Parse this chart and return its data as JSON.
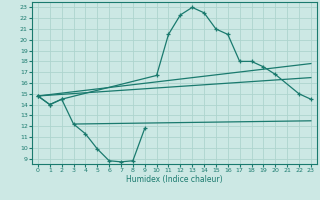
{
  "xlabel": "Humidex (Indice chaleur)",
  "xlim": [
    -0.5,
    23.5
  ],
  "ylim": [
    8.5,
    23.5
  ],
  "xticks": [
    0,
    1,
    2,
    3,
    4,
    5,
    6,
    7,
    8,
    9,
    10,
    11,
    12,
    13,
    14,
    15,
    16,
    17,
    18,
    19,
    20,
    21,
    22,
    23
  ],
  "yticks": [
    9,
    10,
    11,
    12,
    13,
    14,
    15,
    16,
    17,
    18,
    19,
    20,
    21,
    22,
    23
  ],
  "line_color": "#1a7a6e",
  "bg_color": "#cce8e4",
  "grid_color": "#aed4ce",
  "curve_upper_x": [
    0,
    1,
    2,
    10,
    11,
    12,
    13,
    14,
    15,
    16,
    17,
    18,
    19,
    20,
    22,
    23
  ],
  "curve_upper_y": [
    14.8,
    14.0,
    14.5,
    16.7,
    20.5,
    22.3,
    23.0,
    22.5,
    21.0,
    20.5,
    18.0,
    18.0,
    17.5,
    16.8,
    15.0,
    14.5
  ],
  "curve_lower_x": [
    0,
    1,
    2,
    3,
    4,
    5,
    6,
    7,
    8,
    9
  ],
  "curve_lower_y": [
    14.8,
    14.0,
    14.5,
    12.2,
    11.3,
    9.9,
    8.8,
    8.7,
    8.8,
    11.8
  ],
  "ref_line1_x": [
    0,
    23
  ],
  "ref_line1_y": [
    14.8,
    17.8
  ],
  "ref_line2_x": [
    0,
    23
  ],
  "ref_line2_y": [
    14.8,
    16.5
  ],
  "ref_line3_x": [
    3,
    23
  ],
  "ref_line3_y": [
    12.2,
    12.5
  ]
}
